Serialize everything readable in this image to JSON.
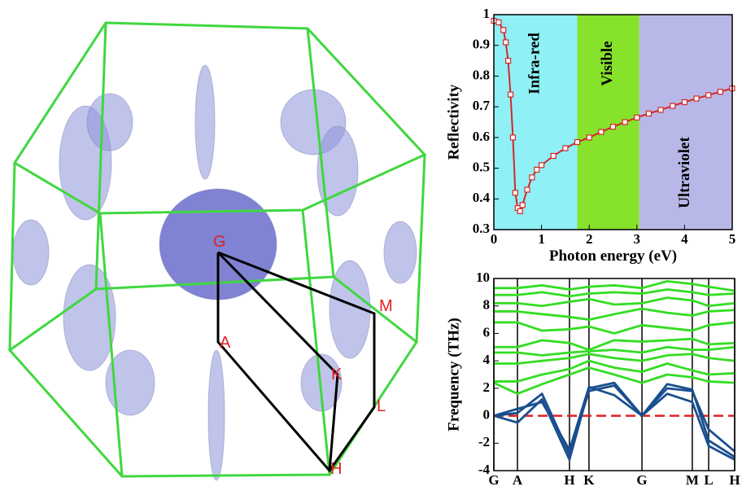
{
  "brillouin_zone": {
    "points": [
      "G",
      "A",
      "K",
      "M",
      "L",
      "H"
    ]
  },
  "chart_data": [
    {
      "type": "line",
      "x_label": "Photon energy (eV)",
      "y_label": "Reflectivity",
      "xlim": [
        0,
        5
      ],
      "ylim": [
        0.3,
        1
      ],
      "xticks": [
        0,
        1,
        2,
        3,
        4,
        5
      ],
      "yticks": [
        0.3,
        0.4,
        0.5,
        0.6,
        0.7,
        0.8,
        0.9,
        1
      ],
      "regions": [
        {
          "label": "Infra-red",
          "start": 0,
          "end": 1.75,
          "color": "#8ff0f5"
        },
        {
          "label": "Visible",
          "start": 1.75,
          "end": 3.05,
          "color": "#86e22a"
        },
        {
          "label": "Ultraviolet",
          "start": 3.05,
          "end": 5,
          "color": "#b8b8e8"
        }
      ],
      "series": [
        {
          "color": "#d42828",
          "marker": "square",
          "x": [
            0,
            0.1,
            0.2,
            0.25,
            0.3,
            0.35,
            0.4,
            0.45,
            0.5,
            0.55,
            0.6,
            0.7,
            0.8,
            0.9,
            1.0,
            1.25,
            1.5,
            1.75,
            2.0,
            2.25,
            2.5,
            2.75,
            3.0,
            3.25,
            3.5,
            3.75,
            4.0,
            4.25,
            4.5,
            4.75,
            5.0
          ],
          "values": [
            0.98,
            0.975,
            0.95,
            0.91,
            0.85,
            0.74,
            0.6,
            0.42,
            0.37,
            0.36,
            0.38,
            0.43,
            0.47,
            0.495,
            0.51,
            0.54,
            0.565,
            0.585,
            0.6,
            0.618,
            0.635,
            0.65,
            0.665,
            0.678,
            0.69,
            0.703,
            0.715,
            0.727,
            0.738,
            0.749,
            0.76
          ]
        }
      ]
    },
    {
      "type": "line",
      "y_label": "Frequency (THz)",
      "xlim": [
        0,
        1
      ],
      "ylim": [
        -4,
        10
      ],
      "xticks": [
        {
          "value": 0,
          "label": "G"
        },
        {
          "value": 0.098,
          "label": "A"
        },
        {
          "value": 0.314,
          "label": "H"
        },
        {
          "value": 0.395,
          "label": "K"
        },
        {
          "value": 0.615,
          "label": "G"
        },
        {
          "value": 0.824,
          "label": "M"
        },
        {
          "value": 0.892,
          "label": "L"
        },
        {
          "value": 1,
          "label": "H"
        }
      ],
      "yticks": [
        -4,
        -2,
        0,
        2,
        4,
        6,
        8,
        10
      ],
      "hlines": [
        {
          "value": 0,
          "color": "#e02020"
        }
      ],
      "x": [
        0,
        0.098,
        0.2,
        0.314,
        0.395,
        0.5,
        0.615,
        0.72,
        0.824,
        0.892,
        1
      ],
      "series": [
        {
          "color": "#1a4f8f",
          "values": [
            0,
            0.2,
            1.6,
            -2.8,
            1.8,
            2.2,
            0,
            2.0,
            1.8,
            -1.0,
            -2.6
          ]
        },
        {
          "color": "#1a4f8f",
          "values": [
            0,
            -0.5,
            1.2,
            -3.2,
            2.0,
            2.4,
            0,
            2.3,
            1.9,
            -1.8,
            -3.0
          ]
        },
        {
          "color": "#1a4f8f",
          "values": [
            0,
            0.5,
            1.0,
            -2.5,
            2.1,
            1.5,
            0,
            1.6,
            1.0,
            -2.2,
            -3.2
          ]
        },
        {
          "color": "#33dd22",
          "values": [
            2.4,
            1.6,
            2.3,
            3.0,
            3.5,
            3.0,
            2.4,
            3.0,
            2.8,
            2.5,
            2.4
          ]
        },
        {
          "color": "#33dd22",
          "values": [
            2.5,
            2.5,
            3.0,
            3.4,
            4.0,
            3.5,
            3.2,
            3.8,
            3.3,
            3.0,
            3.1
          ]
        },
        {
          "color": "#33dd22",
          "values": [
            3.8,
            3.8,
            4.0,
            4.2,
            4.5,
            4.2,
            4.0,
            4.4,
            4.5,
            4.2,
            4.0
          ]
        },
        {
          "color": "#33dd22",
          "values": [
            4.6,
            4.6,
            4.4,
            4.6,
            4.7,
            4.8,
            4.6,
            5.0,
            4.8,
            4.8,
            5.0
          ]
        },
        {
          "color": "#33dd22",
          "values": [
            5.0,
            5.0,
            5.5,
            5.3,
            4.8,
            5.5,
            5.4,
            5.5,
            5.6,
            5.2,
            5.3
          ]
        },
        {
          "color": "#33dd22",
          "values": [
            6.8,
            6.8,
            6.2,
            6.3,
            6.5,
            6.0,
            6.6,
            6.4,
            6.2,
            6.6,
            6.8
          ]
        },
        {
          "color": "#33dd22",
          "values": [
            7.6,
            7.6,
            7.4,
            7.2,
            7.0,
            7.4,
            7.8,
            7.5,
            7.3,
            7.6,
            7.7
          ]
        },
        {
          "color": "#33dd22",
          "values": [
            8.2,
            8.2,
            8.0,
            8.3,
            8.5,
            8.1,
            8.2,
            8.6,
            8.4,
            8.0,
            8.2
          ]
        },
        {
          "color": "#33dd22",
          "values": [
            8.8,
            8.8,
            9.0,
            8.7,
            8.9,
            9.0,
            8.9,
            9.2,
            9.0,
            8.8,
            8.9
          ]
        },
        {
          "color": "#33dd22",
          "values": [
            9.3,
            9.3,
            9.5,
            9.2,
            9.4,
            9.5,
            9.3,
            9.8,
            9.6,
            9.4,
            9.1
          ]
        }
      ]
    }
  ]
}
